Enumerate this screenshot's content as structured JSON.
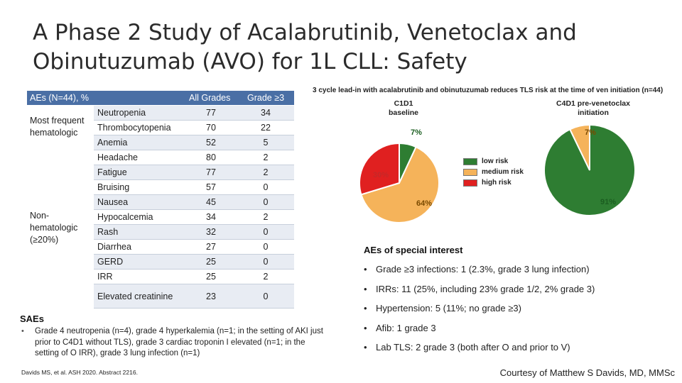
{
  "title": "A Phase 2 Study of Acalabrutinib, Venetoclax and Obinutuzumab (AVO) for 1L CLL: Safety",
  "table": {
    "header": {
      "label": "AEs (N=44), %",
      "all_grades": "All Grades",
      "grade3": "Grade ≥3"
    },
    "groups": {
      "hematologic": "Most frequent hematologic",
      "nonhematologic": "Non-hematologic (≥20%)"
    },
    "rows": [
      {
        "name": "Neutropenia",
        "all": "77",
        "g3": "34"
      },
      {
        "name": "Thrombocytopenia",
        "all": "70",
        "g3": "22"
      },
      {
        "name": "Anemia",
        "all": "52",
        "g3": "5"
      },
      {
        "name": "Headache",
        "all": "80",
        "g3": "2"
      },
      {
        "name": "Fatigue",
        "all": "77",
        "g3": "2"
      },
      {
        "name": "Bruising",
        "all": "57",
        "g3": "0"
      },
      {
        "name": "Nausea",
        "all": "45",
        "g3": "0"
      },
      {
        "name": "Hypocalcemia",
        "all": "34",
        "g3": "2"
      },
      {
        "name": "Rash",
        "all": "32",
        "g3": "0"
      },
      {
        "name": "Diarrhea",
        "all": "27",
        "g3": "0"
      },
      {
        "name": "GERD",
        "all": "25",
        "g3": "0"
      },
      {
        "name": "IRR",
        "all": "25",
        "g3": "2"
      },
      {
        "name": "Elevated creatinine",
        "all": "23",
        "g3": "0"
      }
    ]
  },
  "pie_section": {
    "caption": "3 cycle lead-in with acalabrutinib and obinutuzumab reduces TLS risk at the time of ven initiation (n=44)",
    "legend": [
      "low risk",
      "medium risk",
      "high risk"
    ],
    "colors": {
      "low": "#2e7d32",
      "medium": "#f5b35a",
      "high": "#e02020"
    }
  },
  "chart_data": [
    {
      "type": "pie",
      "title": "C1D1 baseline",
      "categories": [
        "low risk",
        "medium risk",
        "high risk"
      ],
      "values": [
        7,
        64,
        30
      ],
      "labels": [
        "7%",
        "64%",
        "30%"
      ]
    },
    {
      "type": "pie",
      "title": "C4D1 pre-venetoclax initiation",
      "categories": [
        "low risk",
        "medium risk",
        "high risk"
      ],
      "values": [
        91,
        7,
        0
      ],
      "labels": [
        "91%",
        "7%",
        ""
      ]
    }
  ],
  "aes_interest": {
    "title": "AEs of special interest",
    "bullet": "•",
    "items": [
      "Grade ≥3 infections: 1 (2.3%, grade 3 lung infection)",
      "IRRs: 11 (25%, including 23% grade 1/2, 2% grade 3)",
      "Hypertension: 5 (11%; no grade ≥3)",
      "Afib: 1 grade 3",
      "Lab TLS: 2 grade 3 (both after O and prior to V)"
    ]
  },
  "saes": {
    "title": "SAEs",
    "bullet": "•",
    "text": "Grade 4 neutropenia (n=4), grade 4 hyperkalemia (n=1; in the setting of AKI just prior to C4D1 without TLS), grade 3 cardiac troponin I elevated (n=1; in the setting of O IRR), grade 3 lung infection (n=1)"
  },
  "citation": "Davids MS, et al. ASH 2020. Abstract 2216.",
  "courtesy": "Courtesy of Matthew S Davids, MD, MMSc"
}
